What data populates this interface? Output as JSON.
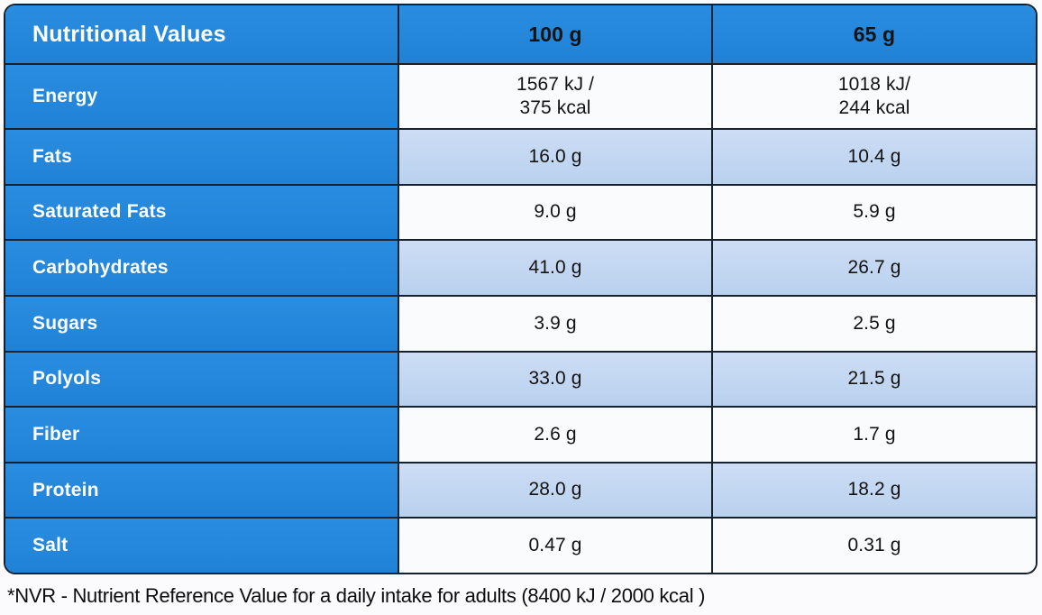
{
  "colors": {
    "header_blue": "#2287DC",
    "row_light_blue": "#BFD6F1",
    "row_white": "#FAFBFD",
    "border_dark": "#15222E",
    "label_text": "#FFFFFF",
    "value_text": "#131313"
  },
  "table": {
    "header": {
      "title": "Nutritional Values",
      "col_100g": "100 g",
      "col_65g": "65 g"
    },
    "rows": [
      {
        "label": "Energy",
        "per_100g": "1567 kJ /\n375 kcal",
        "per_65g": "1018 kJ/\n244 kcal"
      },
      {
        "label": "Fats",
        "per_100g": "16.0 g",
        "per_65g": "10.4 g"
      },
      {
        "label": "Saturated Fats",
        "per_100g": "9.0 g",
        "per_65g": "5.9 g"
      },
      {
        "label": "Carbohydrates",
        "per_100g": "41.0 g",
        "per_65g": "26.7 g"
      },
      {
        "label": "Sugars",
        "per_100g": "3.9 g",
        "per_65g": "2.5 g"
      },
      {
        "label": "Polyols",
        "per_100g": "33.0 g",
        "per_65g": "21.5 g"
      },
      {
        "label": "Fiber",
        "per_100g": "2.6 g",
        "per_65g": "1.7 g"
      },
      {
        "label": "Protein",
        "per_100g": "28.0 g",
        "per_65g": "18.2 g"
      },
      {
        "label": "Salt",
        "per_100g": "0.47 g",
        "per_65g": "0.31 g"
      }
    ]
  },
  "footnote": "*NVR - Nutrient Reference Value for a daily intake for adults (8400 kJ / 2000 kcal )"
}
